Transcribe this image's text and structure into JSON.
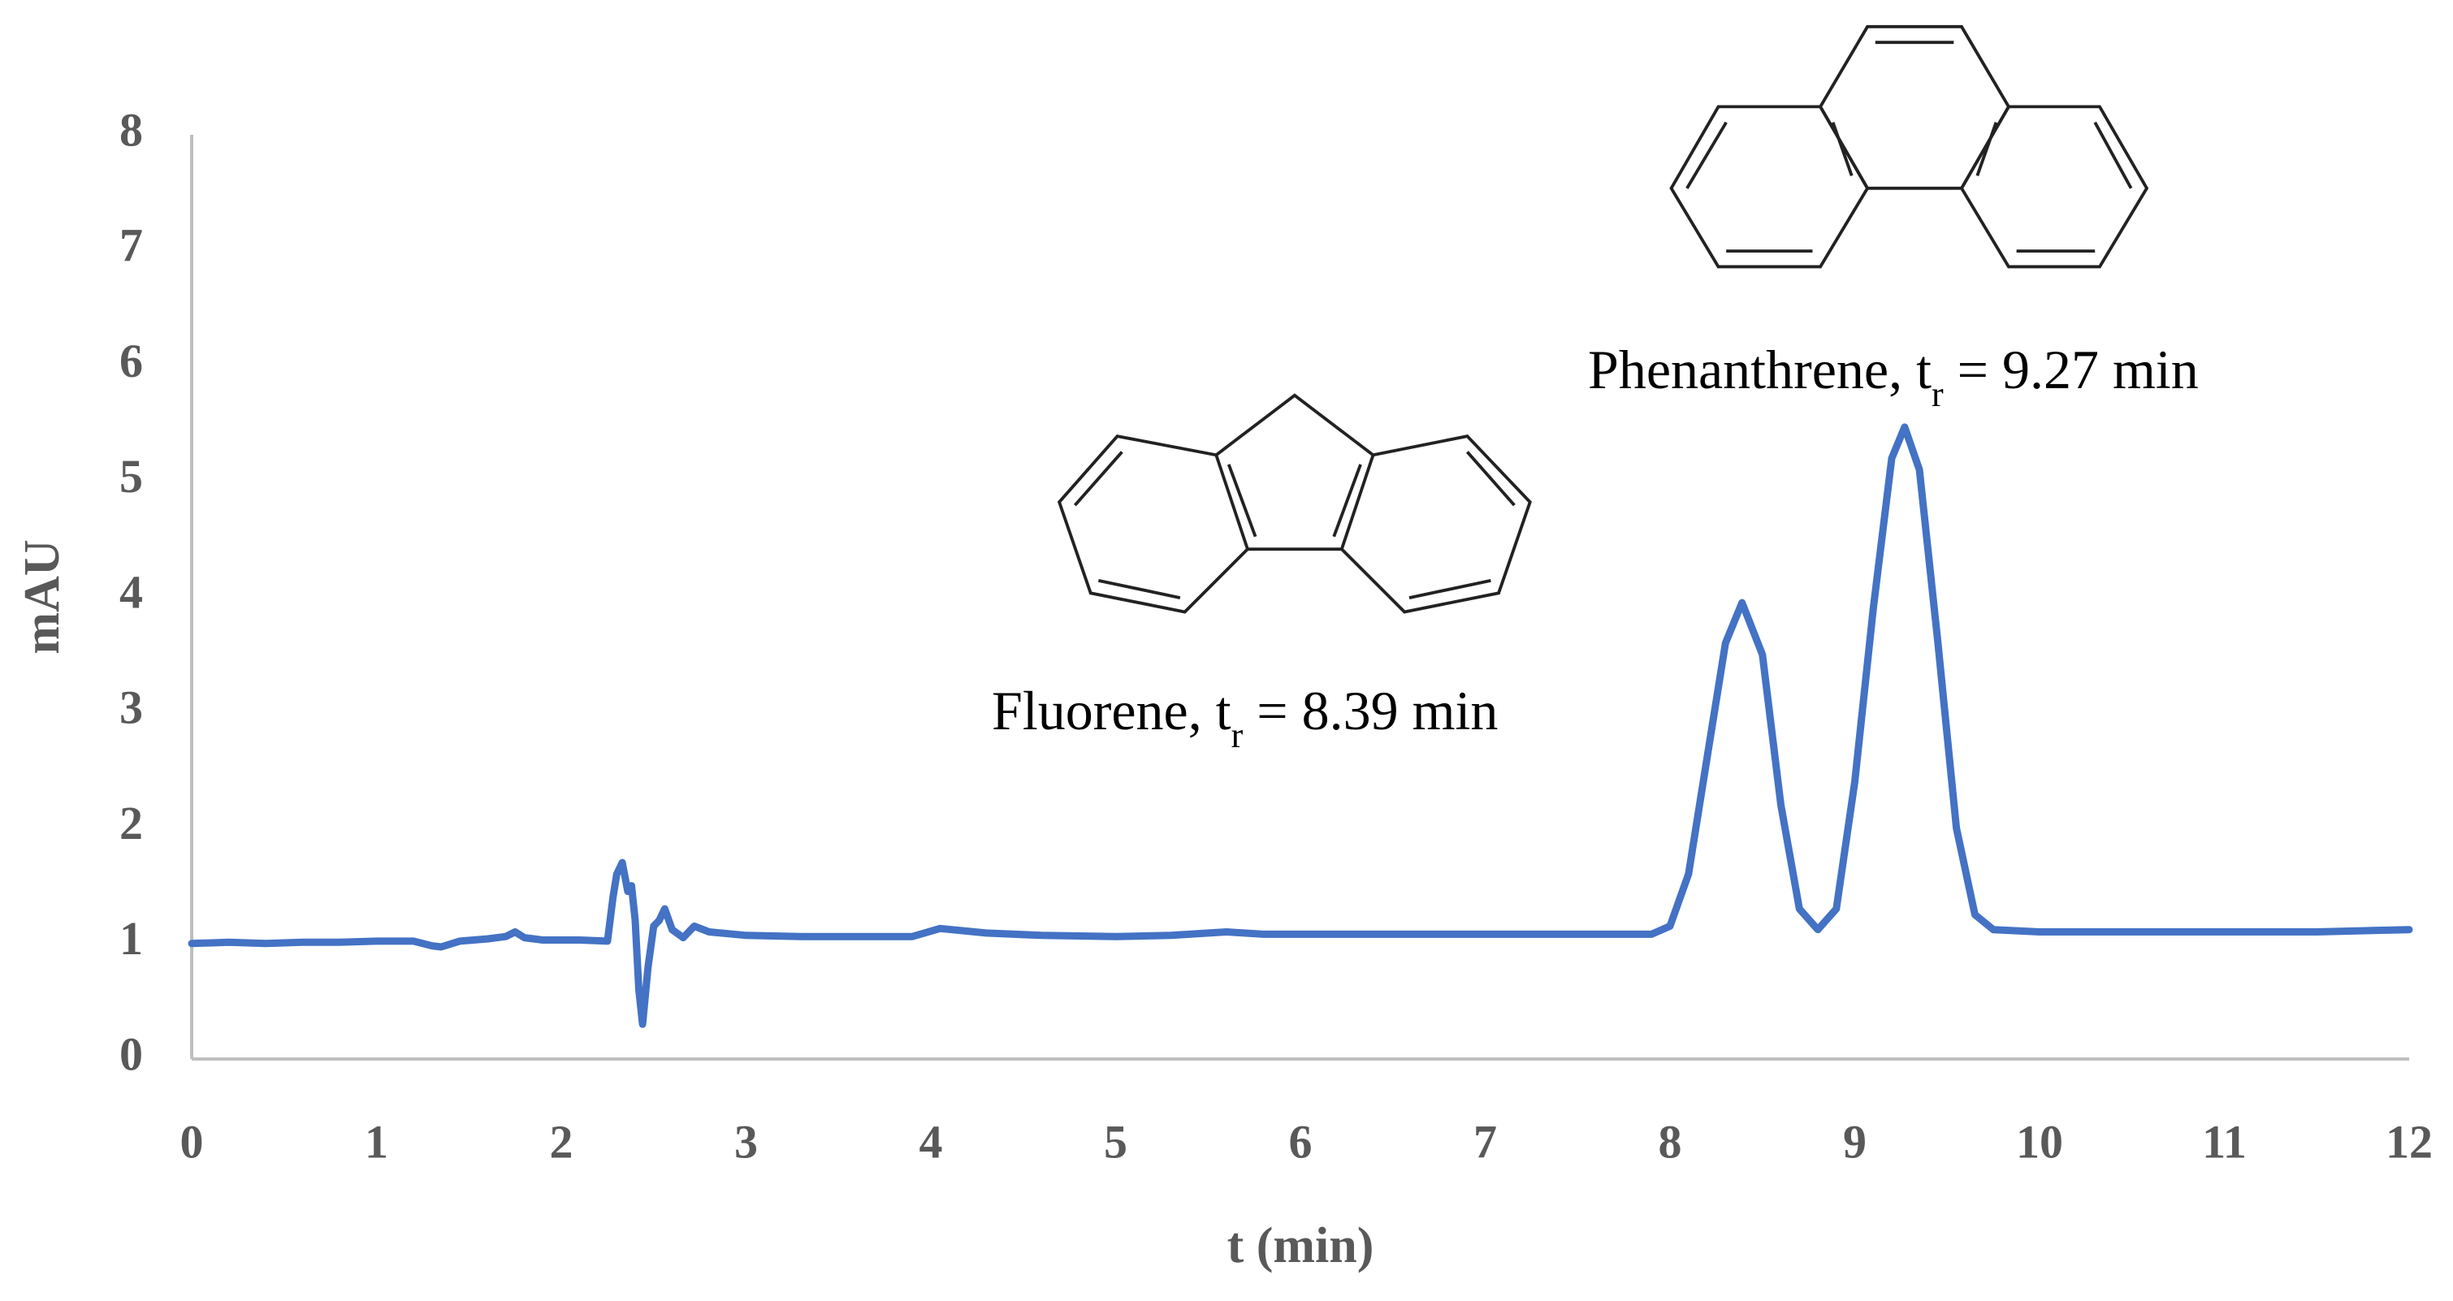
{
  "chart_data": {
    "type": "line",
    "x_label": "t (min)",
    "y_label": "mAU",
    "xlim": [
      0,
      12
    ],
    "xticks": [
      0,
      1,
      2,
      3,
      4,
      5,
      6,
      7,
      8,
      9,
      10,
      11,
      12
    ],
    "ylim": [
      0,
      8
    ],
    "yticks": [
      0,
      1,
      2,
      3,
      4,
      5,
      6,
      7,
      8
    ],
    "grid": false,
    "annotations": [
      {
        "text": "Fluorene, t",
        "subscript": "r",
        "after": " = 8.39 min"
      },
      {
        "text": "Phenanthrene, t",
        "subscript": "r",
        "after": " = 9.27 min"
      }
    ],
    "series": [
      {
        "color": "#4472c4",
        "x": [
          0,
          0.2,
          0.4,
          0.6,
          0.8,
          1.0,
          1.2,
          1.3,
          1.35,
          1.45,
          1.6,
          1.7,
          1.75,
          1.8,
          1.9,
          2.0,
          2.1,
          2.25,
          2.28,
          2.3,
          2.33,
          2.36,
          2.38,
          2.4,
          2.42,
          2.44,
          2.47,
          2.5,
          2.53,
          2.56,
          2.6,
          2.66,
          2.72,
          2.8,
          3.0,
          3.3,
          3.6,
          3.9,
          4.05,
          4.3,
          4.6,
          5.0,
          5.3,
          5.6,
          5.8,
          6.0,
          6.5,
          7.0,
          7.5,
          7.9,
          8.0,
          8.1,
          8.2,
          8.3,
          8.39,
          8.5,
          8.6,
          8.7,
          8.8,
          8.9,
          9.0,
          9.1,
          9.2,
          9.27,
          9.35,
          9.45,
          9.55,
          9.65,
          9.75,
          10.0,
          10.5,
          11.0,
          11.5,
          12.0
        ],
        "values": [
          1.0,
          1.01,
          1.0,
          1.01,
          1.01,
          1.02,
          1.02,
          0.98,
          0.97,
          1.02,
          1.04,
          1.06,
          1.1,
          1.05,
          1.03,
          1.03,
          1.03,
          1.02,
          1.4,
          1.6,
          1.7,
          1.45,
          1.5,
          1.2,
          0.6,
          0.3,
          0.8,
          1.15,
          1.2,
          1.3,
          1.12,
          1.05,
          1.15,
          1.1,
          1.07,
          1.06,
          1.06,
          1.06,
          1.13,
          1.09,
          1.07,
          1.06,
          1.07,
          1.1,
          1.08,
          1.08,
          1.08,
          1.08,
          1.08,
          1.08,
          1.15,
          1.6,
          2.6,
          3.6,
          3.95,
          3.5,
          2.2,
          1.3,
          1.12,
          1.3,
          2.4,
          3.9,
          5.2,
          5.47,
          5.1,
          3.6,
          2.0,
          1.25,
          1.12,
          1.1,
          1.1,
          1.1,
          1.1,
          1.12
        ]
      }
    ]
  }
}
